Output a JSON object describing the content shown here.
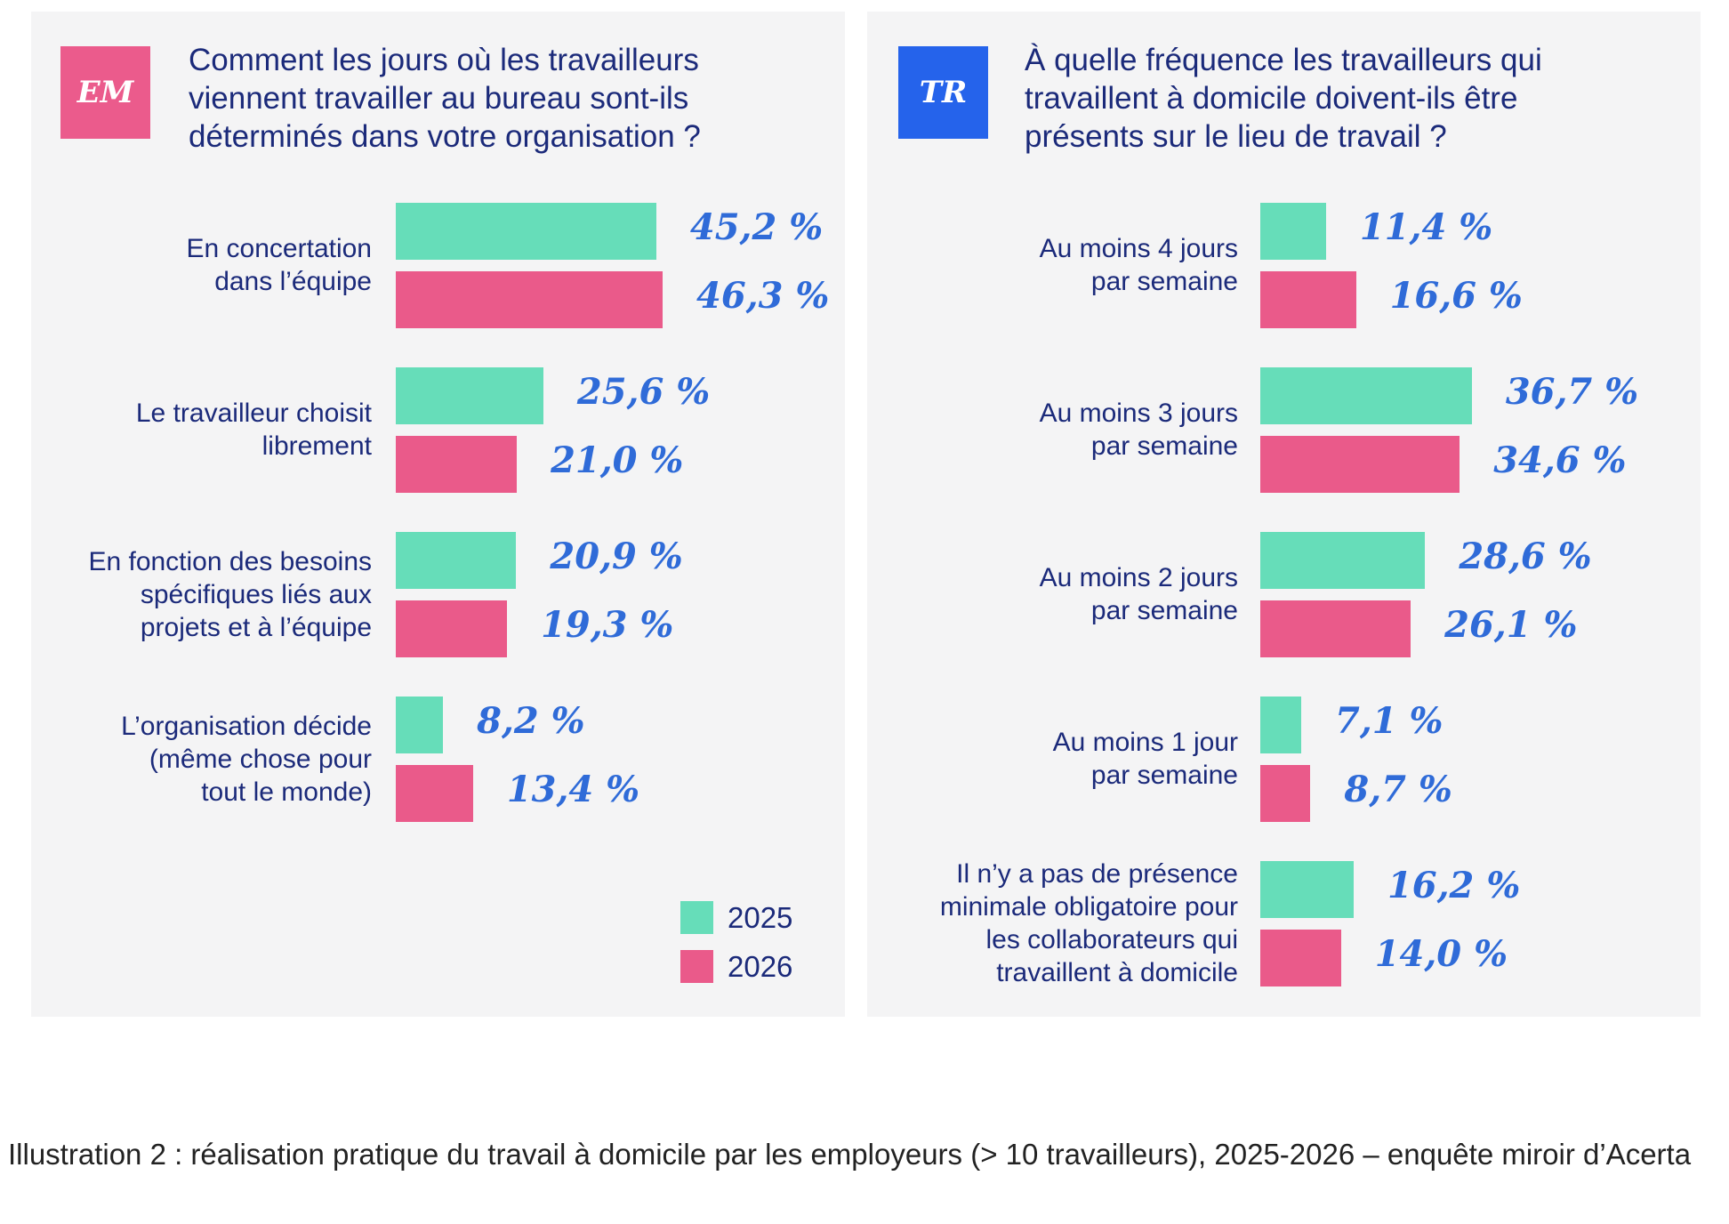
{
  "colors": {
    "series_2025": "#66ddb9",
    "series_2026": "#ea5a8a",
    "badge_em": "#eb5b8c",
    "badge_tr": "#2563eb",
    "value_text": "#2f6bd8",
    "label_text": "#1b2a7a"
  },
  "chart_data": [
    {
      "type": "bar",
      "orientation": "horizontal",
      "badge": "EM",
      "title_lines": [
        "Comment les jours où les travailleurs",
        "viennent travailler au bureau sont-ils",
        "déterminés dans votre organisation ?"
      ],
      "title": "Comment les jours où les travailleurs viennent travailler au bureau sont-ils déterminés dans votre organisation ?",
      "categories": [
        [
          "En concertation",
          "dans l’équipe"
        ],
        [
          "Le travailleur choisit",
          "librement"
        ],
        [
          "En fonction des besoins",
          "spécifiques liés aux",
          "projets et à l’équipe"
        ],
        [
          "L’organisation décide",
          "(même chose pour",
          "tout le monde)"
        ]
      ],
      "series": [
        {
          "name": "2025",
          "values": [
            45.2,
            25.6,
            20.9,
            8.2
          ],
          "labels": [
            "45,2 %",
            "25,6 %",
            "20,9 %",
            "8,2 %"
          ]
        },
        {
          "name": "2026",
          "values": [
            46.3,
            21.0,
            19.3,
            13.4
          ],
          "labels": [
            "46,3 %",
            "21,0 %",
            "19,3 %",
            "13,4 %"
          ]
        }
      ],
      "unit": "%",
      "legend": [
        "2025",
        "2026"
      ],
      "legend_position": "bottom-right",
      "grid": false,
      "xlim": [
        0,
        100
      ]
    },
    {
      "type": "bar",
      "orientation": "horizontal",
      "badge": "TR",
      "title_lines": [
        "À quelle fréquence les travailleurs qui",
        "travaillent à domicile doivent-ils être",
        "présents sur le lieu de travail ?"
      ],
      "title": "À quelle fréquence les travailleurs qui travaillent à domicile doivent-ils être présents sur le lieu de travail ?",
      "categories": [
        [
          "Au moins 4 jours",
          "par semaine"
        ],
        [
          "Au moins 3 jours",
          "par semaine"
        ],
        [
          "Au moins 2 jours",
          "par semaine"
        ],
        [
          "Au moins 1 jour",
          "par semaine"
        ],
        [
          "Il n’y a pas de présence",
          "minimale obligatoire pour",
          "les collaborateurs qui",
          "travaillent à domicile"
        ]
      ],
      "series": [
        {
          "name": "2025",
          "values": [
            11.4,
            36.7,
            28.6,
            7.1,
            16.2
          ],
          "labels": [
            "11,4 %",
            "36,7 %",
            "28,6 %",
            "7,1 %",
            "16,2 %"
          ]
        },
        {
          "name": "2026",
          "values": [
            16.6,
            34.6,
            26.1,
            8.7,
            14.0
          ],
          "labels": [
            "16,6 %",
            "34,6 %",
            "26,1 %",
            "8,7 %",
            "14,0 %"
          ]
        }
      ],
      "unit": "%",
      "grid": false,
      "xlim": [
        0,
        100
      ]
    }
  ],
  "caption": "Illustration 2 : réalisation pratique du travail à domicile par les employeurs (> 10 travailleurs), 2025-2026 – enquête miroir d’Acerta"
}
